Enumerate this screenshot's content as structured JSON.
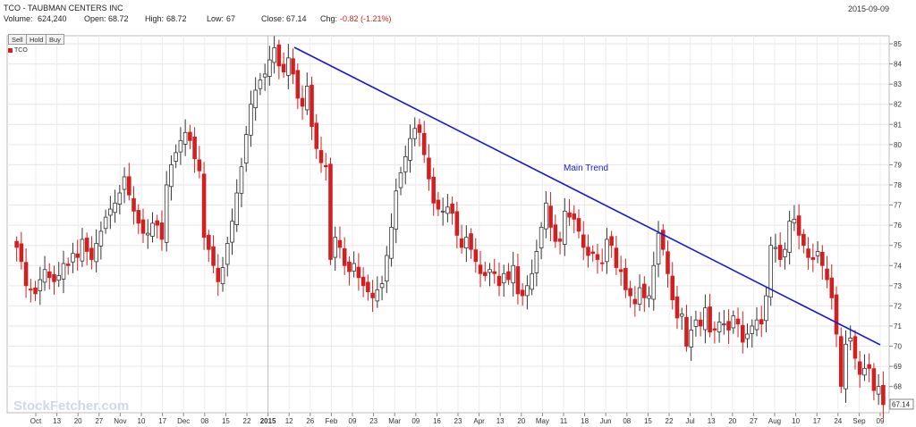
{
  "header": {
    "title": "TCO - TAUBMAN CENTERS INC",
    "volume_label": "Volume:",
    "volume_value": "624,240",
    "open_label": "Open:",
    "open_value": "68.72",
    "high_label": "High:",
    "high_value": "68.72",
    "low_label": "Low:",
    "low_value": "67",
    "close_label": "Close:",
    "close_value": "67.14",
    "chg_label": "Chg:",
    "chg_value": "-0.82 (-1.21%)",
    "date": "2015-09-09"
  },
  "buttons": {
    "sell": "Sell",
    "hold": "Hold",
    "buy": "Buy"
  },
  "legend": {
    "symbol": "TCO"
  },
  "watermark": "StockFetcher.com",
  "colors": {
    "up": "#ffffff",
    "down": "#d21f1f",
    "trend": "#1818d8",
    "grid": "#e6e6e6"
  },
  "chart_data": {
    "type": "candlestick",
    "symbol": "TCO",
    "ylim": [
      66.7,
      85.4
    ],
    "yticks": [
      68,
      69,
      70,
      71,
      72,
      73,
      74,
      75,
      76,
      77,
      78,
      79,
      80,
      81,
      82,
      83,
      84,
      85
    ],
    "last_price_label": "67.14",
    "xtick_labels": [
      "Oct",
      "13",
      "20",
      "27",
      "Nov",
      "10",
      "17",
      "Dec",
      "08",
      "15",
      "22",
      "2015",
      "12",
      "26",
      "Feb",
      "09",
      "23",
      "Mar",
      "09",
      "16",
      "23",
      "Apr",
      "13",
      "20",
      "May",
      "11",
      "18",
      "Jun",
      "08",
      "15",
      "22",
      "Jul",
      "13",
      "20",
      "27",
      "Aug",
      "10",
      "17",
      "24",
      "Sep",
      "09"
    ],
    "closes": [
      74.9,
      74.2,
      73.0,
      72.8,
      72.6,
      73.3,
      73.8,
      73.4,
      73.2,
      73.5,
      74.1,
      74.0,
      74.6,
      74.4,
      75.3,
      74.7,
      74.3,
      75.1,
      75.7,
      76.4,
      76.8,
      77.1,
      77.6,
      78.4,
      77.5,
      76.7,
      76.1,
      75.6,
      75.6,
      76.1,
      76.0,
      75.3,
      78.0,
      79.0,
      79.6,
      80.2,
      80.6,
      80.2,
      79.3,
      78.7,
      75.4,
      74.8,
      74.0,
      73.2,
      73.9,
      75.1,
      76.2,
      77.6,
      78.9,
      80.5,
      82.0,
      82.7,
      83.2,
      83.5,
      84.2,
      84.8,
      83.9,
      83.6,
      84.3,
      83.5,
      82.3,
      81.9,
      82.9,
      80.9,
      79.8,
      79.1,
      78.9,
      74.3,
      75.4,
      74.9,
      74.0,
      73.7,
      74.1,
      73.4,
      73.0,
      72.7,
      72.4,
      72.8,
      73.1,
      74.5,
      75.9,
      77.7,
      78.6,
      79.4,
      80.3,
      80.8,
      80.6,
      79.5,
      78.3,
      77.1,
      76.8,
      76.7,
      76.9,
      76.6,
      75.5,
      74.9,
      75.4,
      74.8,
      74.2,
      73.6,
      73.5,
      73.8,
      73.6,
      73.0,
      73.6,
      73.3,
      74.0,
      72.6,
      72.5,
      73.0,
      73.6,
      74.7,
      75.9,
      77.1,
      75.9,
      75.2,
      75.2,
      76.7,
      76.4,
      76.3,
      75.7,
      74.9,
      74.5,
      74.6,
      74.3,
      74.1,
      75.3,
      75.0,
      73.9,
      73.7,
      72.8,
      72.5,
      72.1,
      72.9,
      72.4,
      72.5,
      74.0,
      75.6,
      74.8,
      73.6,
      72.3,
      71.4,
      71.6,
      70.0,
      70.8,
      71.3,
      71.0,
      71.9,
      70.7,
      70.8,
      71.2,
      71.1,
      70.8,
      71.5,
      71.1,
      70.2,
      70.6,
      71.0,
      71.3,
      71.1,
      72.5,
      75.0,
      74.9,
      74.3,
      74.8,
      76.2,
      76.3,
      75.5,
      75.0,
      74.4,
      74.3,
      74.7,
      74.0,
      73.3,
      72.4,
      70.6,
      68.0,
      70.1,
      70.4,
      69.4,
      68.6,
      68.9,
      68.9,
      67.8,
      68.0,
      67.1
    ]
  }
}
